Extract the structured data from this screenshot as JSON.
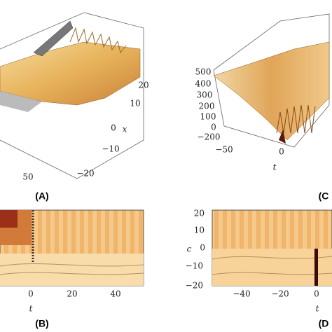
{
  "panels": [
    {
      "label": "(A)",
      "ticks": [
        "20",
        "10",
        "0",
        "−10",
        "−20",
        "50"
      ],
      "axis": "x"
    },
    {
      "label": "(C",
      "ticks": [
        "500",
        "400",
        "300",
        "200",
        "100",
        "0",
        "−200",
        "−50",
        "0"
      ],
      "axis": "t"
    },
    {
      "label": "(B)",
      "ticks": [
        "0",
        "20",
        "40"
      ],
      "axis": "t"
    },
    {
      "label": "(D",
      "ticks": [
        "20",
        "10",
        "0",
        "−10",
        "−20",
        "−40",
        "−20",
        "0"
      ],
      "axis": "t",
      "axis2": "c"
    }
  ]
}
